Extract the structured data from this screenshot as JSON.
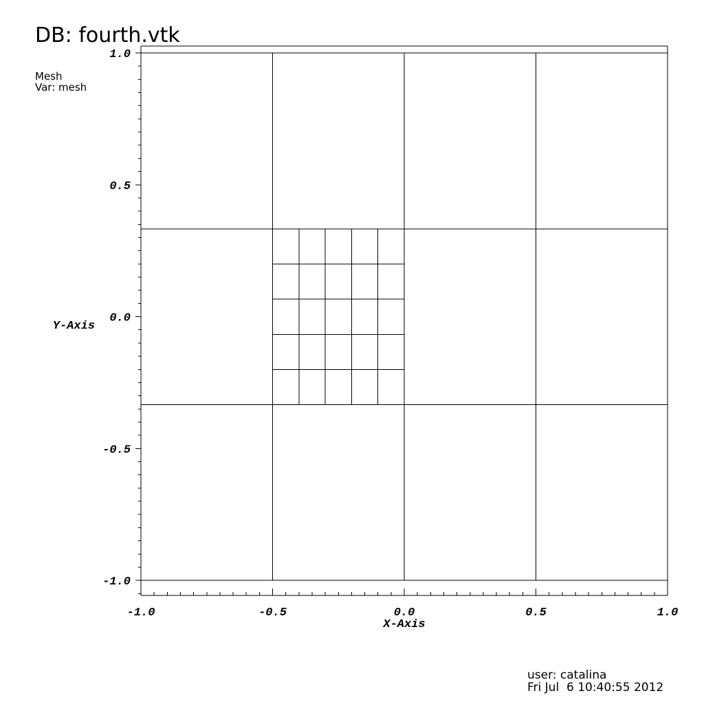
{
  "chart_data": {
    "type": "mesh",
    "title": "DB: fourth.vtk",
    "plot_name": "Mesh",
    "variable": "Var: mesh",
    "x_label": "X-Axis",
    "y_label": "Y-Axis",
    "user": "user: catalina",
    "timestamp": "Fri Jul  6 10:40:55 2012",
    "color": "#000000",
    "xlim": [
      -1.0,
      1.0
    ],
    "ylim": [
      -1.057,
      1.026
    ],
    "xticks": [
      {
        "value": -1.0,
        "label": "-1.0"
      },
      {
        "value": -0.5,
        "label": "-0.5"
      },
      {
        "value": 0.0,
        "label": "0.0"
      },
      {
        "value": 0.5,
        "label": "0.5"
      },
      {
        "value": 1.0,
        "label": "1.0"
      }
    ],
    "yticks": [
      {
        "value": -1.0,
        "label": "-1.0"
      },
      {
        "value": -0.5,
        "label": "-0.5"
      },
      {
        "value": 0.0,
        "label": "0.0"
      },
      {
        "value": 0.5,
        "label": "0.5"
      },
      {
        "value": 1.0,
        "label": "1.0"
      }
    ],
    "xminor_ticks": [
      -0.95,
      -0.9,
      -0.85,
      -0.8,
      -0.75,
      -0.7,
      -0.65,
      -0.6,
      -0.55,
      -0.45,
      -0.4,
      -0.35,
      -0.3,
      -0.25,
      -0.2,
      -0.15,
      -0.1,
      -0.05,
      0.05,
      0.1,
      0.15,
      0.2,
      0.25,
      0.3,
      0.35,
      0.4,
      0.45,
      0.55,
      0.6,
      0.65,
      0.7,
      0.75,
      0.8,
      0.85,
      0.9,
      0.95
    ],
    "yminor_ticks": [
      -1.05,
      -0.95,
      -0.9,
      -0.85,
      -0.8,
      -0.75,
      -0.7,
      -0.65,
      -0.6,
      -0.55,
      -0.45,
      -0.4,
      -0.35,
      -0.3,
      -0.25,
      -0.2,
      -0.15,
      -0.1,
      -0.05,
      0.05,
      0.1,
      0.15,
      0.2,
      0.25,
      0.3,
      0.35,
      0.4,
      0.45,
      0.55,
      0.6,
      0.65,
      0.7,
      0.75,
      0.8,
      0.85,
      0.9,
      0.95
    ],
    "vertical_lines": [
      {
        "x": -0.5,
        "y0": -1.0,
        "y1": 1.0
      },
      {
        "x": 0.0,
        "y0": -1.0,
        "y1": 1.0
      },
      {
        "x": 0.5,
        "y0": -1.0,
        "y1": 1.0
      },
      {
        "x": -0.4,
        "y0": -0.333,
        "y1": 0.333
      },
      {
        "x": -0.3,
        "y0": -0.333,
        "y1": 0.333
      },
      {
        "x": -0.2,
        "y0": -0.333,
        "y1": 0.333
      },
      {
        "x": -0.1,
        "y0": -0.333,
        "y1": 0.333
      }
    ],
    "horizontal_lines": [
      {
        "y": 1.0,
        "x0": -1.0,
        "x1": 1.0
      },
      {
        "y": -1.0,
        "x0": -1.0,
        "x1": 1.0
      },
      {
        "y": 0.333,
        "x0": -1.0,
        "x1": 1.0
      },
      {
        "y": -0.333,
        "x0": -1.0,
        "x1": 1.0
      },
      {
        "y": 0.2,
        "x0": -0.5,
        "x1": 0.0
      },
      {
        "y": 0.067,
        "x0": -0.5,
        "x1": 0.0
      },
      {
        "y": -0.067,
        "x0": -0.5,
        "x1": 0.0
      },
      {
        "y": -0.2,
        "x0": -0.5,
        "x1": 0.0
      }
    ]
  }
}
